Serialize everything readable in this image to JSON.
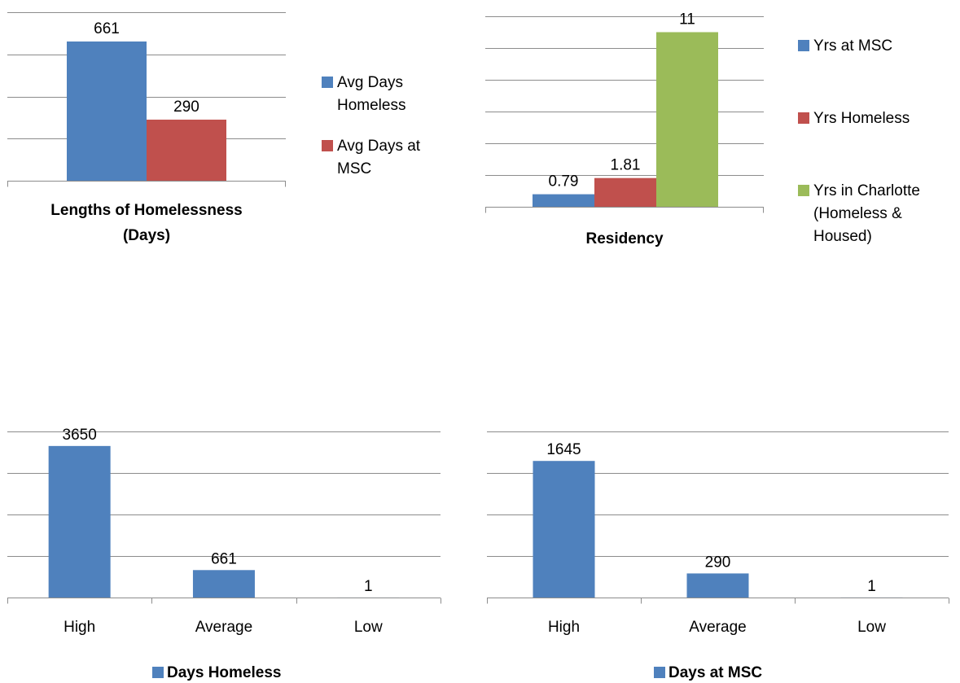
{
  "colors": {
    "blue": "#4F81BD",
    "red": "#C0504D",
    "green": "#9BBB59",
    "grid": "#8C8C8C"
  },
  "chart_data": [
    {
      "type": "bar",
      "title": "Lengths of Homelessness (Days)",
      "categories": [
        ""
      ],
      "series": [
        {
          "name": "Avg Days Homeless",
          "values": [
            661
          ]
        },
        {
          "name": "Avg Days at MSC",
          "values": [
            290
          ]
        }
      ],
      "value_labels": [
        "661",
        "290"
      ],
      "legend_lines": [
        [
          "Avg Days",
          "Homeless"
        ],
        [
          "Avg Days at",
          "MSC"
        ]
      ],
      "title_lines": [
        "Lengths of Homelessness",
        "(Days)"
      ],
      "ylim": [
        0,
        800
      ],
      "ygrid_step": 200,
      "grid": true,
      "legend": "right"
    },
    {
      "type": "bar",
      "title": "Residency",
      "categories": [
        ""
      ],
      "series": [
        {
          "name": "Yrs at MSC",
          "values": [
            0.79
          ]
        },
        {
          "name": "Yrs Homeless",
          "values": [
            1.81
          ]
        },
        {
          "name": "Yrs in Charlotte (Homeless & Housed)",
          "values": [
            11
          ]
        }
      ],
      "value_labels": [
        "0.79",
        "1.81",
        "11"
      ],
      "legend_lines": [
        [
          "Yrs at MSC"
        ],
        [
          "Yrs Homeless"
        ],
        [
          "Yrs in Charlotte",
          "(Homeless &",
          "Housed)"
        ]
      ],
      "title_lines": [
        "Residency"
      ],
      "ylim": [
        0,
        12
      ],
      "ygrid_step": 2,
      "grid": true,
      "legend": "right"
    },
    {
      "type": "bar",
      "title": "",
      "categories": [
        "High",
        "Average",
        "Low"
      ],
      "series": [
        {
          "name": "Days Homeless",
          "values": [
            3650,
            661,
            1
          ]
        }
      ],
      "value_labels": [
        "3650",
        "661",
        "1"
      ],
      "ylim": [
        0,
        4000
      ],
      "ygrid_step": 1000,
      "grid": true,
      "legend": "bottom"
    },
    {
      "type": "bar",
      "title": "",
      "categories": [
        "High",
        "Average",
        "Low"
      ],
      "series": [
        {
          "name": "Days at MSC",
          "values": [
            1645,
            290,
            1
          ]
        }
      ],
      "value_labels": [
        "1645",
        "290",
        "1"
      ],
      "ylim": [
        0,
        2000
      ],
      "ygrid_step": 500,
      "grid": true,
      "legend": "bottom"
    }
  ]
}
